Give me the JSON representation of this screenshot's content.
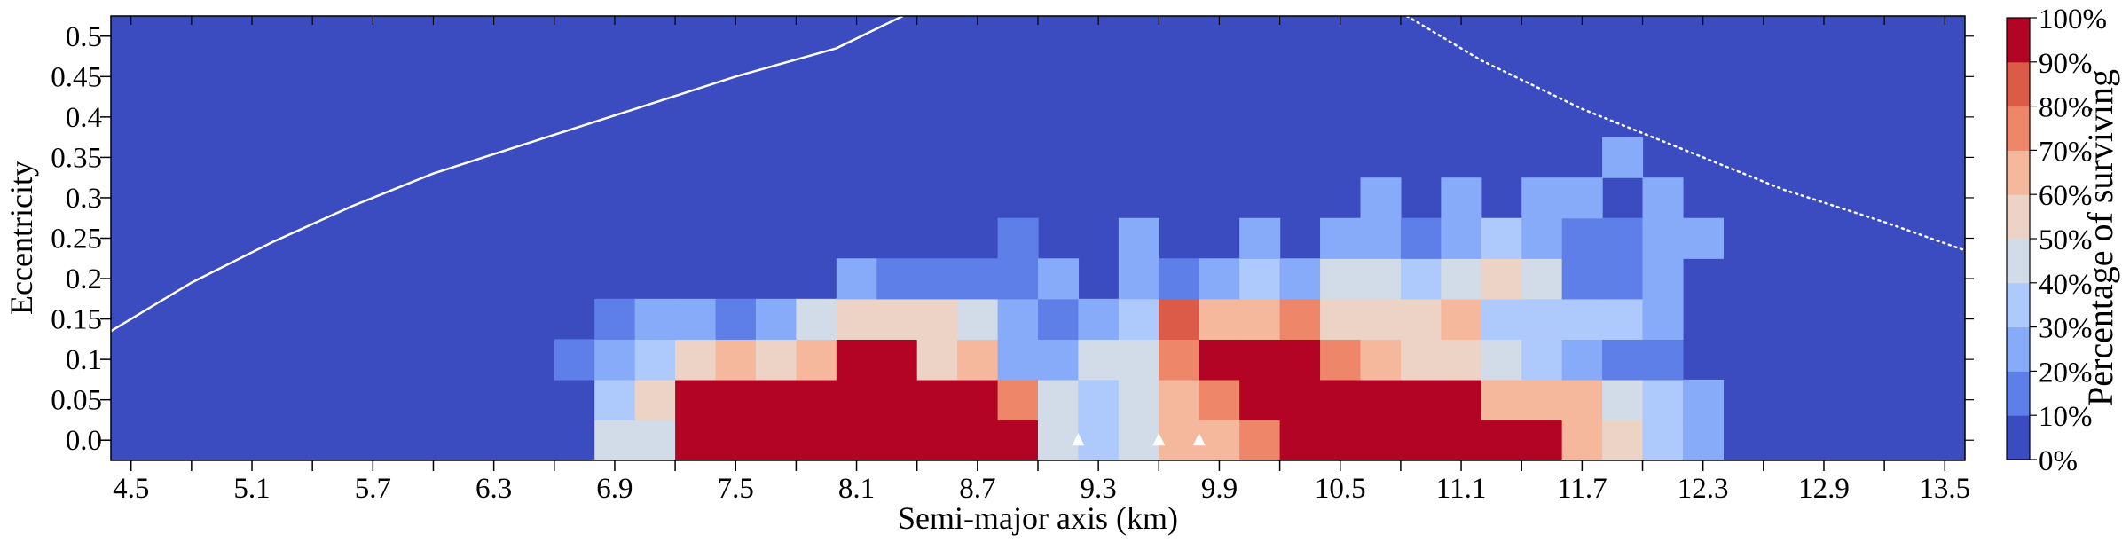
{
  "chart_data": {
    "type": "heatmap",
    "title": "",
    "xlabel": "Semi-major axis (km)",
    "ylabel": "Eccentricity",
    "xlim": [
      4.4,
      13.6
    ],
    "ylim": [
      -0.025,
      0.525
    ],
    "x_ticks": [
      4.5,
      4.8,
      5.1,
      5.4,
      5.7,
      6.0,
      6.3,
      6.6,
      6.9,
      7.2,
      7.5,
      7.8,
      8.1,
      8.4,
      8.7,
      9.0,
      9.3,
      9.6,
      9.9,
      10.2,
      10.5,
      10.8,
      11.1,
      11.4,
      11.7,
      12.0,
      12.3,
      12.6,
      12.9,
      13.2,
      13.5
    ],
    "x_tick_labels": [
      "4.5",
      "",
      "5.1",
      "",
      "5.7",
      "",
      "6.3",
      "",
      "6.9",
      "",
      "7.5",
      "",
      "8.1",
      "",
      "8.7",
      "",
      "9.3",
      "",
      "9.9",
      "",
      "10.5",
      "",
      "11.1",
      "",
      "11.7",
      "",
      "12.3",
      "",
      "12.9",
      "",
      "13.5"
    ],
    "y_ticks": [
      0.0,
      0.05,
      0.1,
      0.15,
      0.2,
      0.25,
      0.3,
      0.35,
      0.4,
      0.45,
      0.5
    ],
    "y_tick_labels": [
      "0.0",
      "0.05",
      "0.1",
      "0.15",
      "0.2",
      "0.25",
      "0.3",
      "0.35",
      "0.4",
      "0.45",
      "0.5"
    ],
    "x_cell_centers_start": 4.5,
    "x_cell_step": 0.2,
    "y_cell_centers_start": 0.0,
    "y_cell_step": 0.05,
    "values_percent_rows_bottom_to_top": [
      [
        0,
        0,
        0,
        0,
        0,
        0,
        0,
        0,
        0,
        0,
        0,
        0,
        45,
        45,
        90,
        100,
        90,
        100,
        100,
        100,
        100,
        90,
        90,
        45,
        35,
        45,
        65,
        65,
        70,
        100,
        100,
        100,
        100,
        100,
        90,
        90,
        65,
        55,
        35,
        25,
        0,
        0,
        0,
        0,
        0,
        0,
        0
      ],
      [
        0,
        0,
        0,
        0,
        0,
        0,
        0,
        0,
        0,
        0,
        0,
        0,
        35,
        55,
        90,
        90,
        90,
        90,
        90,
        90,
        100,
        90,
        75,
        45,
        35,
        45,
        65,
        75,
        100,
        100,
        100,
        90,
        90,
        90,
        65,
        65,
        65,
        45,
        35,
        25,
        0,
        0,
        0,
        0,
        0,
        0,
        0
      ],
      [
        0,
        0,
        0,
        0,
        0,
        0,
        0,
        0,
        0,
        0,
        0,
        15,
        25,
        35,
        55,
        65,
        55,
        65,
        90,
        100,
        55,
        65,
        25,
        25,
        45,
        45,
        75,
        100,
        100,
        90,
        75,
        65,
        55,
        55,
        45,
        35,
        25,
        15,
        15,
        0,
        0,
        0,
        0,
        0,
        0,
        0,
        0
      ],
      [
        0,
        0,
        0,
        0,
        0,
        0,
        0,
        0,
        0,
        0,
        0,
        0,
        15,
        25,
        25,
        15,
        25,
        45,
        55,
        55,
        55,
        45,
        25,
        15,
        25,
        35,
        85,
        65,
        65,
        75,
        55,
        55,
        55,
        65,
        35,
        35,
        35,
        35,
        25,
        0,
        0,
        0,
        0,
        0,
        0,
        0,
        0
      ],
      [
        0,
        0,
        0,
        0,
        0,
        0,
        0,
        0,
        0,
        0,
        0,
        0,
        0,
        0,
        0,
        0,
        0,
        0,
        25,
        15,
        15,
        15,
        15,
        25,
        0,
        25,
        15,
        25,
        35,
        25,
        45,
        45,
        35,
        45,
        55,
        45,
        15,
        15,
        25,
        0,
        0,
        0,
        0,
        0,
        0,
        0,
        0
      ],
      [
        0,
        0,
        0,
        0,
        0,
        0,
        0,
        0,
        0,
        0,
        0,
        0,
        0,
        0,
        0,
        0,
        0,
        0,
        0,
        0,
        0,
        0,
        15,
        0,
        0,
        25,
        0,
        0,
        25,
        0,
        25,
        25,
        15,
        25,
        35,
        25,
        15,
        15,
        25,
        25,
        0,
        0,
        0,
        0,
        0,
        0,
        0
      ],
      [
        0,
        0,
        0,
        0,
        0,
        0,
        0,
        0,
        0,
        0,
        0,
        0,
        0,
        0,
        0,
        0,
        0,
        0,
        0,
        0,
        0,
        0,
        0,
        0,
        0,
        0,
        0,
        0,
        0,
        0,
        0,
        25,
        0,
        25,
        0,
        25,
        25,
        0,
        25,
        0,
        0,
        0,
        0,
        0,
        0,
        0,
        0
      ],
      [
        0,
        0,
        0,
        0,
        0,
        0,
        0,
        0,
        0,
        0,
        0,
        0,
        0,
        0,
        0,
        0,
        0,
        0,
        0,
        0,
        0,
        0,
        0,
        0,
        0,
        0,
        0,
        0,
        0,
        0,
        0,
        0,
        0,
        0,
        0,
        0,
        0,
        25,
        0,
        0,
        0,
        0,
        0,
        0,
        0,
        0,
        0
      ],
      [
        0,
        0,
        0,
        0,
        0,
        0,
        0,
        0,
        0,
        0,
        0,
        0,
        0,
        0,
        0,
        0,
        0,
        0,
        0,
        0,
        0,
        0,
        0,
        0,
        0,
        0,
        0,
        0,
        0,
        0,
        0,
        0,
        0,
        0,
        0,
        0,
        0,
        0,
        0,
        0,
        0,
        0,
        0,
        0,
        0,
        0,
        0
      ],
      [
        0,
        0,
        0,
        0,
        0,
        0,
        0,
        0,
        0,
        0,
        0,
        0,
        0,
        0,
        0,
        0,
        0,
        0,
        0,
        0,
        0,
        0,
        0,
        0,
        0,
        0,
        0,
        0,
        0,
        0,
        0,
        0,
        0,
        0,
        0,
        0,
        0,
        0,
        0,
        0,
        0,
        0,
        0,
        0,
        0,
        0,
        0
      ],
      [
        0,
        0,
        0,
        0,
        0,
        0,
        0,
        0,
        0,
        0,
        0,
        0,
        0,
        0,
        0,
        0,
        0,
        0,
        0,
        0,
        0,
        0,
        0,
        0,
        0,
        0,
        0,
        0,
        0,
        0,
        0,
        0,
        0,
        0,
        0,
        0,
        0,
        0,
        0,
        0,
        0,
        0,
        0,
        0,
        0,
        0,
        0
      ]
    ],
    "markers": [
      {
        "x": 9.2,
        "y": 0.0,
        "shape": "triangle"
      },
      {
        "x": 9.6,
        "y": 0.0,
        "shape": "triangle"
      },
      {
        "x": 9.8,
        "y": 0.0,
        "shape": "triangle"
      }
    ],
    "curves": [
      {
        "name": "solid-boundary",
        "style": "solid",
        "points": [
          [
            4.4,
            0.135
          ],
          [
            4.8,
            0.195
          ],
          [
            5.2,
            0.245
          ],
          [
            5.6,
            0.29
          ],
          [
            6.0,
            0.33
          ],
          [
            6.5,
            0.37
          ],
          [
            7.0,
            0.41
          ],
          [
            7.5,
            0.45
          ],
          [
            8.0,
            0.485
          ],
          [
            8.33,
            0.525
          ]
        ]
      },
      {
        "name": "dotted-boundary",
        "style": "dotted",
        "points": [
          [
            10.83,
            0.525
          ],
          [
            11.2,
            0.47
          ],
          [
            11.7,
            0.41
          ],
          [
            12.2,
            0.36
          ],
          [
            12.7,
            0.31
          ],
          [
            13.2,
            0.27
          ],
          [
            13.6,
            0.235
          ]
        ]
      }
    ],
    "colorbar": {
      "label": "Percentage of surviving",
      "levels": [
        0,
        10,
        20,
        30,
        40,
        50,
        60,
        70,
        80,
        90,
        100
      ],
      "tick_labels": [
        "0%",
        "10%",
        "20%",
        "30%",
        "40%",
        "50%",
        "60%",
        "70%",
        "80%",
        "90%",
        "100%"
      ],
      "colors": [
        "#3b4cc0",
        "#5f7fe8",
        "#87aaf9",
        "#aec9fc",
        "#d2dbe8",
        "#ecd3c5",
        "#f6b89c",
        "#ee8669",
        "#dc5a48",
        "#b40426"
      ]
    },
    "curve_color": "#ffffff",
    "marker_color": "#ffffff"
  }
}
